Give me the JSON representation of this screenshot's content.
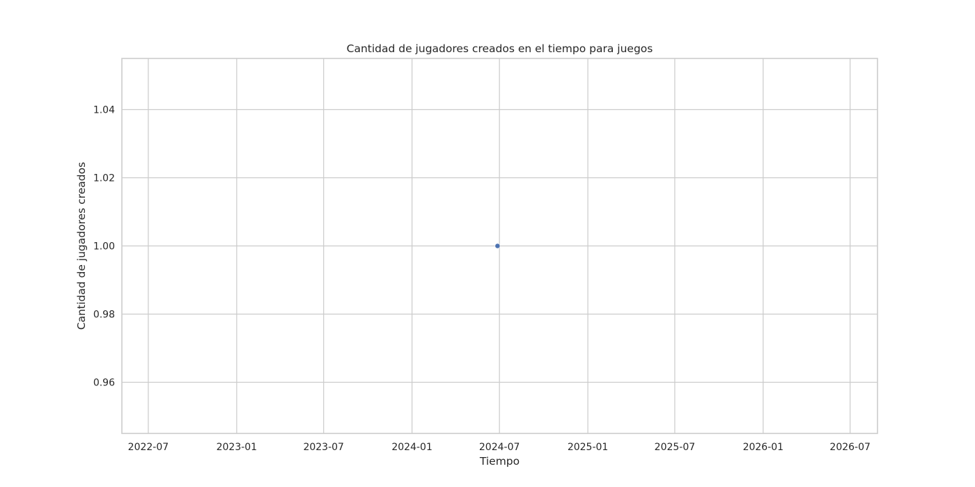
{
  "chart_data": {
    "type": "scatter",
    "title": "Cantidad de jugadores creados en el tiempo para juegos",
    "xlabel": "Tiempo",
    "ylabel": "Cantidad de jugadores creados",
    "x_ticks": [
      "2022-07",
      "2023-01",
      "2023-07",
      "2024-01",
      "2024-07",
      "2025-01",
      "2025-07",
      "2026-01",
      "2026-07"
    ],
    "y_ticks": [
      "0.96",
      "0.98",
      "1.00",
      "1.02",
      "1.04"
    ],
    "xlim": [
      "2022-05-07",
      "2026-08-27"
    ],
    "ylim": [
      0.945,
      1.055
    ],
    "points": [
      {
        "x": "2024-06-27",
        "y": 1.0
      }
    ],
    "point_color": "#4c72b0",
    "grid": true
  }
}
